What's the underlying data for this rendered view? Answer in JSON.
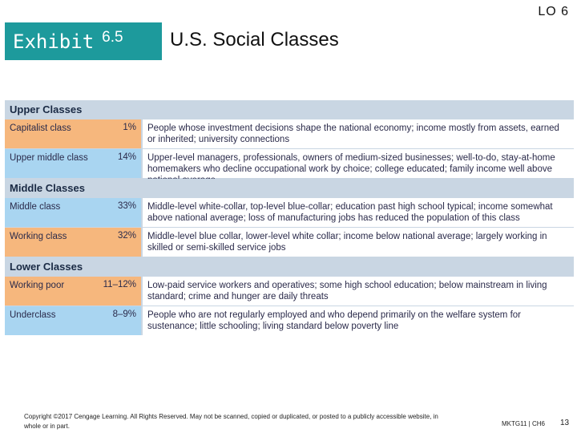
{
  "slide": {
    "lo_label": "LO 6",
    "exhibit_word": "Exhibit",
    "exhibit_number": "6.5",
    "title": "U.S. Social Classes"
  },
  "colors": {
    "accent": "#1d9a9c",
    "orange": "#f6b77d",
    "blue": "#a9d5f1",
    "band": "#c9d6e3"
  },
  "sections": [
    {
      "header": "Upper Classes",
      "rows": [
        {
          "cls": "Capitalist class",
          "pct": "1%",
          "desc": "People whose investment decisions shape the national economy; income mostly from assets, earned or inherited; university connections"
        },
        {
          "cls": "Upper middle class",
          "pct": "14%",
          "desc": "Upper-level managers, professionals, owners of medium-sized businesses; well-to-do, stay-at-home homemakers who decline occupational work by choice; college educated; family income well above national average"
        }
      ]
    },
    {
      "header": "Middle Classes",
      "rows": [
        {
          "cls": "Middle class",
          "pct": "33%",
          "desc": "Middle-level white-collar, top-level blue-collar; education past high school typical; income somewhat above national average; loss of manufacturing jobs has reduced the population of this class"
        },
        {
          "cls": "Working class",
          "pct": "32%",
          "desc": "Middle-level blue collar, lower-level white collar; income below national average; largely working in skilled or semi-skilled service jobs"
        }
      ]
    },
    {
      "header": "Lower Classes",
      "rows": [
        {
          "cls": "Working poor",
          "pct": "11–12%",
          "desc": "Low-paid service workers and operatives; some high school education; below mainstream in living standard; crime and hunger are daily threats"
        },
        {
          "cls": "Underclass",
          "pct": "8–9%",
          "desc": "People who are not regularly employed and who depend primarily on the welfare system for sustenance; little schooling; living standard below poverty line"
        }
      ]
    }
  ],
  "footer": {
    "copyright": "Copyright ©2017 Cengage Learning. All Rights Reserved. May not be scanned, copied or duplicated, or posted to a publicly accessible website, in whole or in part.",
    "course": "MKTG11 | CH6",
    "page": "13"
  }
}
